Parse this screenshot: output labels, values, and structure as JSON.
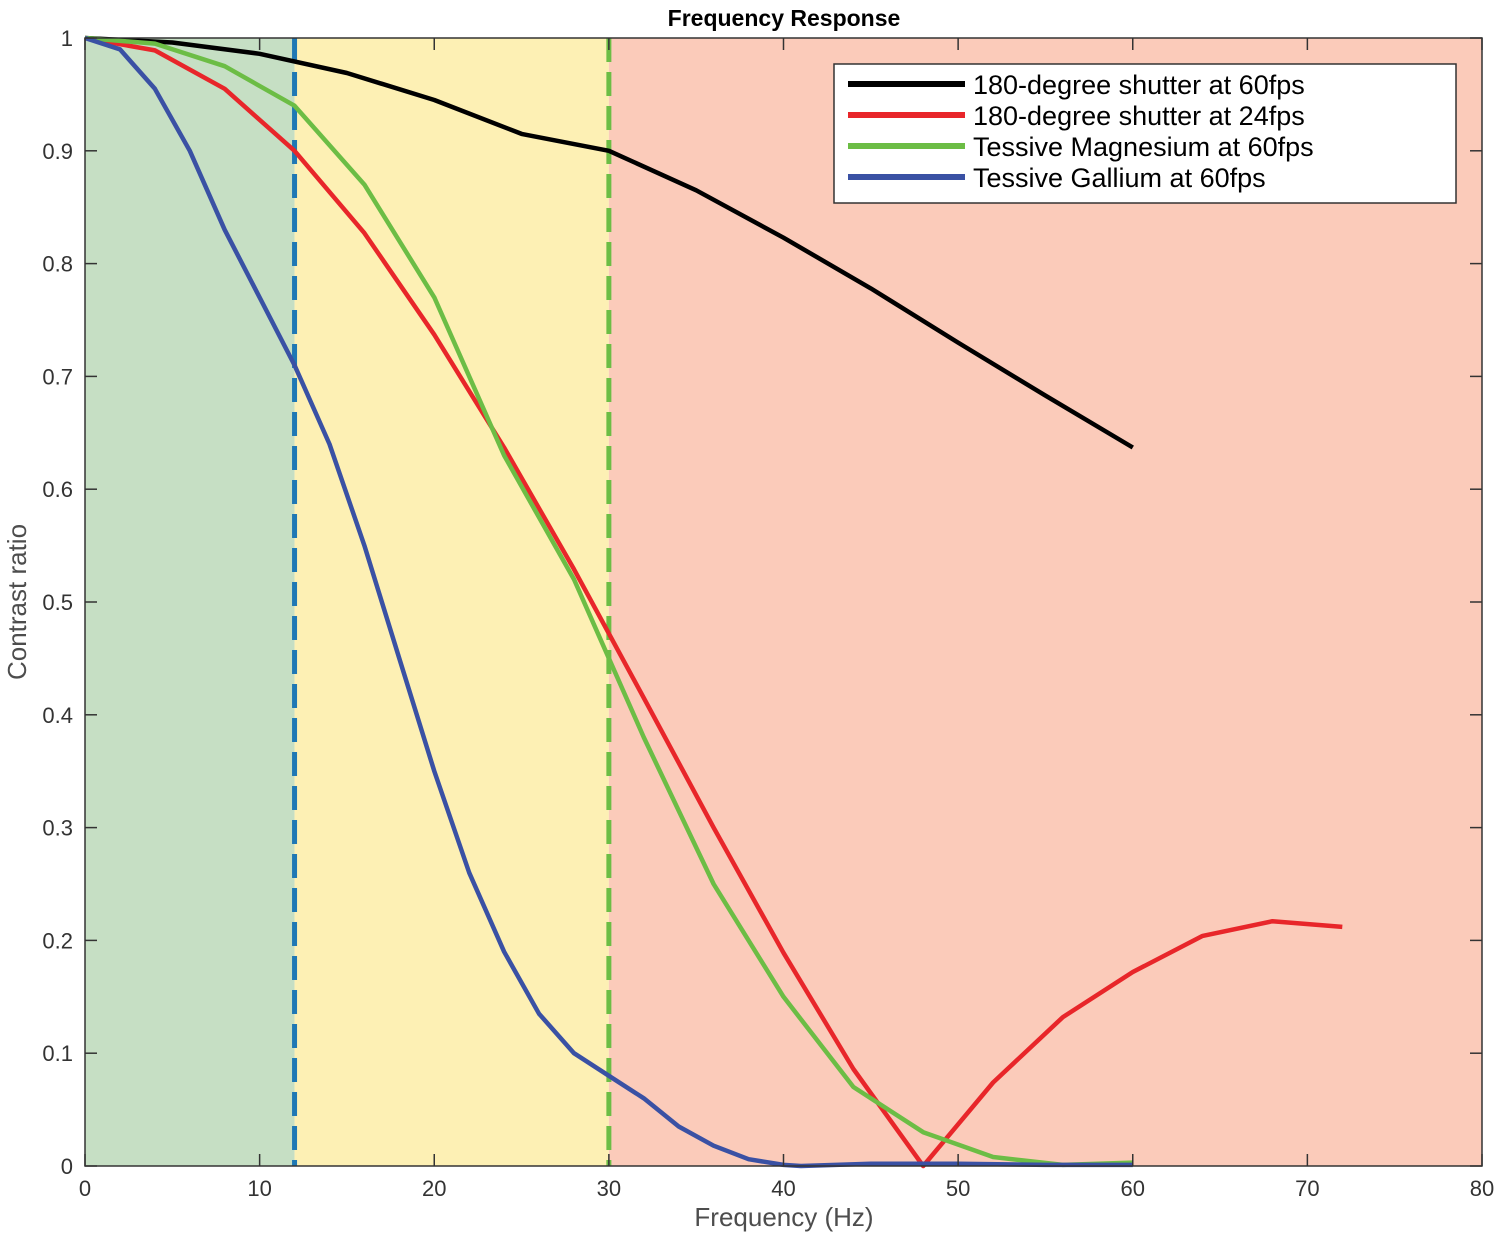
{
  "chart_data": {
    "type": "line",
    "title": "Frequency Response",
    "xlabel": "Frequency (Hz)",
    "ylabel": "Contrast ratio",
    "xlim": [
      0,
      80
    ],
    "ylim": [
      0,
      1
    ],
    "xticks": [
      0,
      10,
      20,
      30,
      40,
      50,
      60,
      70,
      80
    ],
    "yticks": [
      0,
      0.1,
      0.2,
      0.3,
      0.4,
      0.5,
      0.6,
      0.7,
      0.8,
      0.9,
      1
    ],
    "ytick_labels": [
      "0",
      "0.1",
      "0.2",
      "0.3",
      "0.4",
      "0.5",
      "0.6",
      "0.7",
      "0.8",
      "0.9",
      "1"
    ],
    "grid": false,
    "legend_position": "top-right",
    "regions": [
      {
        "x0": 0,
        "x1": 12,
        "color": "#c6dfc4"
      },
      {
        "x0": 12,
        "x1": 30,
        "color": "#fdf0b4"
      },
      {
        "x0": 30,
        "x1": 80,
        "color": "#fbcbba"
      }
    ],
    "vlines": [
      {
        "x": 12,
        "color": "#1f78b4",
        "style": "dashed"
      },
      {
        "x": 30,
        "color": "#6cbd45",
        "style": "dashed"
      }
    ],
    "series": [
      {
        "name": "180-degree shutter at 60fps",
        "color": "#000000",
        "x": [
          0,
          5,
          10,
          15,
          20,
          25,
          30,
          35,
          40,
          45,
          50,
          55,
          60
        ],
        "y": [
          1.0,
          0.996,
          0.986,
          0.969,
          0.945,
          0.915,
          0.9,
          0.865,
          0.823,
          0.778,
          0.73,
          0.683,
          0.637
        ]
      },
      {
        "name": "180-degree shutter at 24fps",
        "color": "#e8262a",
        "x": [
          0,
          4,
          8,
          12,
          16,
          20,
          24,
          28,
          32,
          36,
          40,
          44,
          48,
          52,
          56,
          60,
          64,
          68,
          72
        ],
        "y": [
          1.0,
          0.989,
          0.955,
          0.9,
          0.827,
          0.737,
          0.637,
          0.529,
          0.415,
          0.3,
          0.189,
          0.086,
          0.0,
          0.074,
          0.132,
          0.172,
          0.204,
          0.217,
          0.212
        ]
      },
      {
        "name": "Tessive Magnesium at 60fps",
        "color": "#6cbd45",
        "x": [
          0,
          4,
          8,
          12,
          16,
          20,
          24,
          28,
          32,
          36,
          40,
          44,
          48,
          52,
          56,
          60
        ],
        "y": [
          1.0,
          0.995,
          0.975,
          0.94,
          0.87,
          0.77,
          0.63,
          0.52,
          0.38,
          0.25,
          0.15,
          0.07,
          0.03,
          0.008,
          0.001,
          0.003
        ]
      },
      {
        "name": "Tessive Gallium at 60fps",
        "color": "#3a51a4",
        "x": [
          0,
          2,
          4,
          6,
          8,
          10,
          12,
          14,
          16,
          18,
          20,
          22,
          24,
          26,
          28,
          30,
          32,
          34,
          36,
          38,
          40,
          41,
          45,
          50,
          55,
          60
        ],
        "y": [
          1.0,
          0.99,
          0.955,
          0.9,
          0.83,
          0.77,
          0.71,
          0.64,
          0.55,
          0.45,
          0.35,
          0.26,
          0.19,
          0.135,
          0.1,
          0.08,
          0.06,
          0.035,
          0.018,
          0.006,
          0.001,
          0.0,
          0.002,
          0.002,
          0.001,
          0.001
        ]
      }
    ]
  }
}
